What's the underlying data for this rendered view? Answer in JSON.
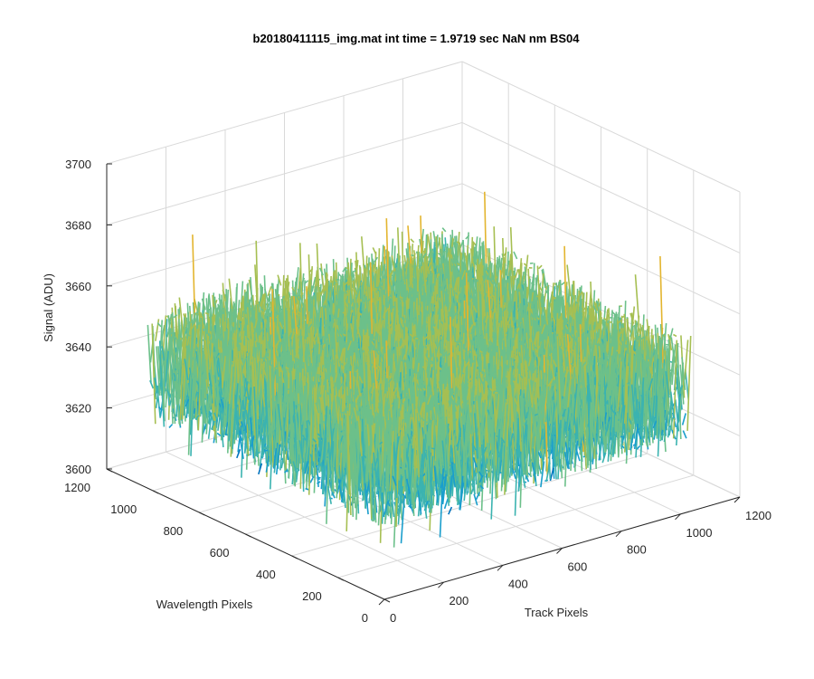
{
  "chart_data": {
    "type": "surface3d",
    "title": "b20180411115_img.mat int time = 1.9719 sec  NaN nm BS04",
    "xlabel": "Track Pixels",
    "ylabel": "Wavelength Pixels",
    "zlabel": "Signal (ADU)",
    "xlim": [
      0,
      1200
    ],
    "ylim": [
      0,
      1200
    ],
    "zlim": [
      3600,
      3700
    ],
    "x_ticks": [
      "0",
      "200",
      "400",
      "600",
      "800",
      "1000",
      "1200"
    ],
    "y_ticks": [
      "0",
      "200",
      "400",
      "600",
      "800",
      "1000",
      "1200"
    ],
    "z_ticks": [
      "3600",
      "3620",
      "3640",
      "3660",
      "3680",
      "3700"
    ],
    "grid": true,
    "data_extent": {
      "x": [
        1,
        1024
      ],
      "y": [
        1,
        1024
      ]
    },
    "signal_mean": 3640,
    "signal_range": [
      3615,
      3690
    ],
    "colormap": [
      "#0072bd",
      "#1a9ecc",
      "#3bb3b0",
      "#6cc08a",
      "#a6bf52",
      "#e3b52f"
    ]
  }
}
